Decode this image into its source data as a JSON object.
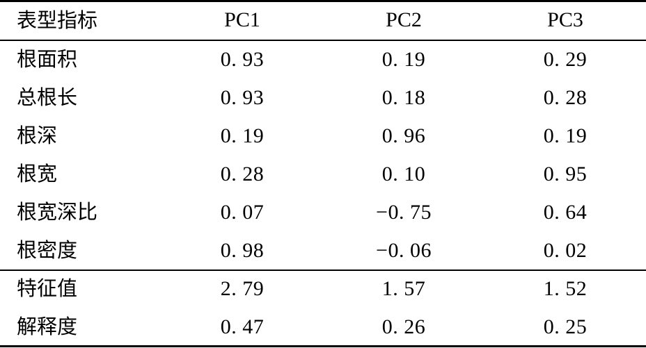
{
  "table": {
    "headers": [
      "表型指标",
      "PC1",
      "PC2",
      "PC3"
    ],
    "rows": [
      {
        "label": "根面积",
        "pc1": "0. 93",
        "pc2": "0. 19",
        "pc3": "0. 29"
      },
      {
        "label": "总根长",
        "pc1": "0. 93",
        "pc2": "0. 18",
        "pc3": "0. 28"
      },
      {
        "label": "根深",
        "pc1": "0. 19",
        "pc2": "0. 96",
        "pc3": "0. 19"
      },
      {
        "label": "根宽",
        "pc1": "0. 28",
        "pc2": "0. 10",
        "pc3": "0. 95"
      },
      {
        "label": "根宽深比",
        "pc1": "0. 07",
        "pc2": "−0. 75",
        "pc3": "0. 64"
      },
      {
        "label": "根密度",
        "pc1": "0. 98",
        "pc2": "−0. 06",
        "pc3": "0. 02"
      },
      {
        "label": "特征值",
        "pc1": "2. 79",
        "pc2": "1. 57",
        "pc3": "1. 52"
      },
      {
        "label": "解释度",
        "pc1": "0. 47",
        "pc2": "0. 26",
        "pc3": "0. 25"
      }
    ]
  }
}
